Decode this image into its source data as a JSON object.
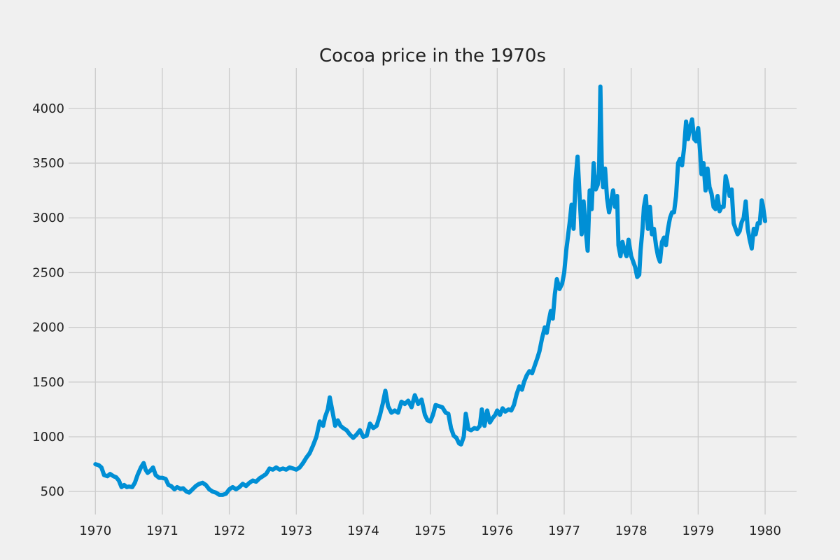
{
  "chart_data": {
    "type": "line",
    "title": "Cocoa price in the 1970s",
    "xlabel": "",
    "ylabel": "",
    "xlim": [
      1969.6,
      1980.47
    ],
    "ylim": [
      290,
      4370
    ],
    "x_ticks": [
      "1970",
      "1971",
      "1972",
      "1973",
      "1974",
      "1975",
      "1976",
      "1977",
      "1978",
      "1979",
      "1980"
    ],
    "y_ticks": [
      500,
      1000,
      1500,
      2000,
      2500,
      3000,
      3500,
      4000
    ],
    "grid": true,
    "legend": "none",
    "colors": {
      "background": "#f0f0f0",
      "grid": "#cbcbcb",
      "line": "#008fd5"
    },
    "series": [
      {
        "color": "#008fd5",
        "points": [
          [
            1970.0,
            750
          ],
          [
            1970.05,
            740
          ],
          [
            1970.09,
            720
          ],
          [
            1970.13,
            650
          ],
          [
            1970.18,
            640
          ],
          [
            1970.22,
            660
          ],
          [
            1970.27,
            640
          ],
          [
            1970.31,
            630
          ],
          [
            1970.35,
            600
          ],
          [
            1970.39,
            540
          ],
          [
            1970.43,
            560
          ],
          [
            1970.47,
            540
          ],
          [
            1970.5,
            545
          ],
          [
            1970.55,
            540
          ],
          [
            1970.59,
            580
          ],
          [
            1970.63,
            650
          ],
          [
            1970.68,
            720
          ],
          [
            1970.72,
            760
          ],
          [
            1970.75,
            700
          ],
          [
            1970.78,
            670
          ],
          [
            1970.82,
            690
          ],
          [
            1970.86,
            720
          ],
          [
            1970.9,
            650
          ],
          [
            1970.95,
            625
          ],
          [
            1971.0,
            625
          ],
          [
            1971.05,
            615
          ],
          [
            1971.09,
            560
          ],
          [
            1971.13,
            550
          ],
          [
            1971.18,
            520
          ],
          [
            1971.22,
            540
          ],
          [
            1971.27,
            525
          ],
          [
            1971.31,
            530
          ],
          [
            1971.36,
            500
          ],
          [
            1971.4,
            490
          ],
          [
            1971.45,
            520
          ],
          [
            1971.5,
            550
          ],
          [
            1971.55,
            570
          ],
          [
            1971.6,
            580
          ],
          [
            1971.65,
            560
          ],
          [
            1971.7,
            520
          ],
          [
            1971.75,
            500
          ],
          [
            1971.8,
            490
          ],
          [
            1971.85,
            470
          ],
          [
            1971.9,
            470
          ],
          [
            1971.95,
            480
          ],
          [
            1972.0,
            520
          ],
          [
            1972.05,
            540
          ],
          [
            1972.1,
            520
          ],
          [
            1972.15,
            540
          ],
          [
            1972.2,
            570
          ],
          [
            1972.25,
            550
          ],
          [
            1972.3,
            580
          ],
          [
            1972.35,
            600
          ],
          [
            1972.4,
            590
          ],
          [
            1972.45,
            620
          ],
          [
            1972.5,
            640
          ],
          [
            1972.55,
            660
          ],
          [
            1972.6,
            710
          ],
          [
            1972.65,
            700
          ],
          [
            1972.7,
            720
          ],
          [
            1972.75,
            700
          ],
          [
            1972.8,
            710
          ],
          [
            1972.85,
            700
          ],
          [
            1972.9,
            720
          ],
          [
            1972.95,
            710
          ],
          [
            1973.0,
            700
          ],
          [
            1973.05,
            720
          ],
          [
            1973.1,
            760
          ],
          [
            1973.15,
            810
          ],
          [
            1973.2,
            850
          ],
          [
            1973.25,
            920
          ],
          [
            1973.3,
            1000
          ],
          [
            1973.35,
            1140
          ],
          [
            1973.4,
            1100
          ],
          [
            1973.43,
            1180
          ],
          [
            1973.47,
            1250
          ],
          [
            1973.5,
            1360
          ],
          [
            1973.54,
            1230
          ],
          [
            1973.58,
            1100
          ],
          [
            1973.62,
            1150
          ],
          [
            1973.66,
            1100
          ],
          [
            1973.7,
            1080
          ],
          [
            1973.75,
            1060
          ],
          [
            1973.8,
            1020
          ],
          [
            1973.85,
            990
          ],
          [
            1973.9,
            1020
          ],
          [
            1973.95,
            1060
          ],
          [
            1974.0,
            1000
          ],
          [
            1974.05,
            1010
          ],
          [
            1974.1,
            1120
          ],
          [
            1974.15,
            1080
          ],
          [
            1974.2,
            1100
          ],
          [
            1974.25,
            1200
          ],
          [
            1974.29,
            1300
          ],
          [
            1974.33,
            1420
          ],
          [
            1974.37,
            1280
          ],
          [
            1974.42,
            1220
          ],
          [
            1974.47,
            1240
          ],
          [
            1974.52,
            1220
          ],
          [
            1974.57,
            1320
          ],
          [
            1974.62,
            1300
          ],
          [
            1974.67,
            1330
          ],
          [
            1974.72,
            1270
          ],
          [
            1974.77,
            1380
          ],
          [
            1974.82,
            1300
          ],
          [
            1974.87,
            1340
          ],
          [
            1974.92,
            1200
          ],
          [
            1974.96,
            1150
          ],
          [
            1975.0,
            1140
          ],
          [
            1975.04,
            1200
          ],
          [
            1975.08,
            1290
          ],
          [
            1975.13,
            1280
          ],
          [
            1975.18,
            1270
          ],
          [
            1975.23,
            1220
          ],
          [
            1975.27,
            1210
          ],
          [
            1975.31,
            1080
          ],
          [
            1975.35,
            1010
          ],
          [
            1975.39,
            990
          ],
          [
            1975.43,
            940
          ],
          [
            1975.46,
            930
          ],
          [
            1975.5,
            1000
          ],
          [
            1975.53,
            1210
          ],
          [
            1975.57,
            1070
          ],
          [
            1975.61,
            1060
          ],
          [
            1975.66,
            1080
          ],
          [
            1975.7,
            1070
          ],
          [
            1975.74,
            1100
          ],
          [
            1975.77,
            1250
          ],
          [
            1975.81,
            1100
          ],
          [
            1975.85,
            1240
          ],
          [
            1975.89,
            1130
          ],
          [
            1975.93,
            1170
          ],
          [
            1975.97,
            1200
          ],
          [
            1976.0,
            1240
          ],
          [
            1976.04,
            1200
          ],
          [
            1976.08,
            1260
          ],
          [
            1976.12,
            1230
          ],
          [
            1976.17,
            1250
          ],
          [
            1976.21,
            1240
          ],
          [
            1976.25,
            1290
          ],
          [
            1976.29,
            1390
          ],
          [
            1976.33,
            1460
          ],
          [
            1976.37,
            1430
          ],
          [
            1976.4,
            1500
          ],
          [
            1976.44,
            1560
          ],
          [
            1976.48,
            1600
          ],
          [
            1976.52,
            1580
          ],
          [
            1976.56,
            1650
          ],
          [
            1976.6,
            1720
          ],
          [
            1976.63,
            1780
          ],
          [
            1976.67,
            1900
          ],
          [
            1976.71,
            2000
          ],
          [
            1976.74,
            1950
          ],
          [
            1976.77,
            2060
          ],
          [
            1976.8,
            2150
          ],
          [
            1976.83,
            2080
          ],
          [
            1976.86,
            2300
          ],
          [
            1976.89,
            2440
          ],
          [
            1976.93,
            2350
          ],
          [
            1976.97,
            2400
          ],
          [
            1977.0,
            2500
          ],
          [
            1977.03,
            2700
          ],
          [
            1977.05,
            2800
          ],
          [
            1977.08,
            2950
          ],
          [
            1977.11,
            3120
          ],
          [
            1977.14,
            2900
          ],
          [
            1977.17,
            3350
          ],
          [
            1977.2,
            3560
          ],
          [
            1977.23,
            3200
          ],
          [
            1977.26,
            2850
          ],
          [
            1977.29,
            3150
          ],
          [
            1977.32,
            2900
          ],
          [
            1977.35,
            2700
          ],
          [
            1977.38,
            3250
          ],
          [
            1977.41,
            3080
          ],
          [
            1977.44,
            3500
          ],
          [
            1977.47,
            3260
          ],
          [
            1977.5,
            3300
          ],
          [
            1977.52,
            3400
          ],
          [
            1977.54,
            4200
          ],
          [
            1977.56,
            3500
          ],
          [
            1977.58,
            3280
          ],
          [
            1977.61,
            3450
          ],
          [
            1977.64,
            3180
          ],
          [
            1977.67,
            3050
          ],
          [
            1977.7,
            3150
          ],
          [
            1977.73,
            3250
          ],
          [
            1977.76,
            3100
          ],
          [
            1977.79,
            3200
          ],
          [
            1977.81,
            2750
          ],
          [
            1977.84,
            2650
          ],
          [
            1977.87,
            2780
          ],
          [
            1977.9,
            2700
          ],
          [
            1977.93,
            2650
          ],
          [
            1977.96,
            2800
          ],
          [
            1978.0,
            2650
          ],
          [
            1978.03,
            2600
          ],
          [
            1978.06,
            2550
          ],
          [
            1978.09,
            2460
          ],
          [
            1978.12,
            2480
          ],
          [
            1978.14,
            2700
          ],
          [
            1978.17,
            2900
          ],
          [
            1978.19,
            3100
          ],
          [
            1978.22,
            3200
          ],
          [
            1978.25,
            2900
          ],
          [
            1978.28,
            3100
          ],
          [
            1978.31,
            2850
          ],
          [
            1978.34,
            2900
          ],
          [
            1978.37,
            2750
          ],
          [
            1978.4,
            2650
          ],
          [
            1978.43,
            2600
          ],
          [
            1978.46,
            2780
          ],
          [
            1978.49,
            2820
          ],
          [
            1978.52,
            2750
          ],
          [
            1978.55,
            2900
          ],
          [
            1978.58,
            3000
          ],
          [
            1978.61,
            3050
          ],
          [
            1978.64,
            3050
          ],
          [
            1978.67,
            3200
          ],
          [
            1978.7,
            3500
          ],
          [
            1978.73,
            3540
          ],
          [
            1978.76,
            3480
          ],
          [
            1978.79,
            3640
          ],
          [
            1978.82,
            3880
          ],
          [
            1978.85,
            3720
          ],
          [
            1978.88,
            3830
          ],
          [
            1978.91,
            3900
          ],
          [
            1978.94,
            3720
          ],
          [
            1978.97,
            3700
          ],
          [
            1979.0,
            3820
          ],
          [
            1979.03,
            3600
          ],
          [
            1979.05,
            3400
          ],
          [
            1979.08,
            3500
          ],
          [
            1979.11,
            3250
          ],
          [
            1979.14,
            3450
          ],
          [
            1979.17,
            3280
          ],
          [
            1979.2,
            3220
          ],
          [
            1979.23,
            3100
          ],
          [
            1979.26,
            3080
          ],
          [
            1979.29,
            3200
          ],
          [
            1979.32,
            3060
          ],
          [
            1979.35,
            3100
          ],
          [
            1979.38,
            3100
          ],
          [
            1979.41,
            3380
          ],
          [
            1979.44,
            3300
          ],
          [
            1979.47,
            3200
          ],
          [
            1979.5,
            3260
          ],
          [
            1979.53,
            2950
          ],
          [
            1979.56,
            2900
          ],
          [
            1979.59,
            2850
          ],
          [
            1979.62,
            2880
          ],
          [
            1979.65,
            2960
          ],
          [
            1979.68,
            3000
          ],
          [
            1979.71,
            3150
          ],
          [
            1979.74,
            2900
          ],
          [
            1979.77,
            2800
          ],
          [
            1979.8,
            2720
          ],
          [
            1979.83,
            2900
          ],
          [
            1979.86,
            2850
          ],
          [
            1979.89,
            2950
          ],
          [
            1979.92,
            2950
          ],
          [
            1979.95,
            3160
          ],
          [
            1979.97,
            3100
          ],
          [
            1980.0,
            2970
          ]
        ]
      }
    ]
  }
}
